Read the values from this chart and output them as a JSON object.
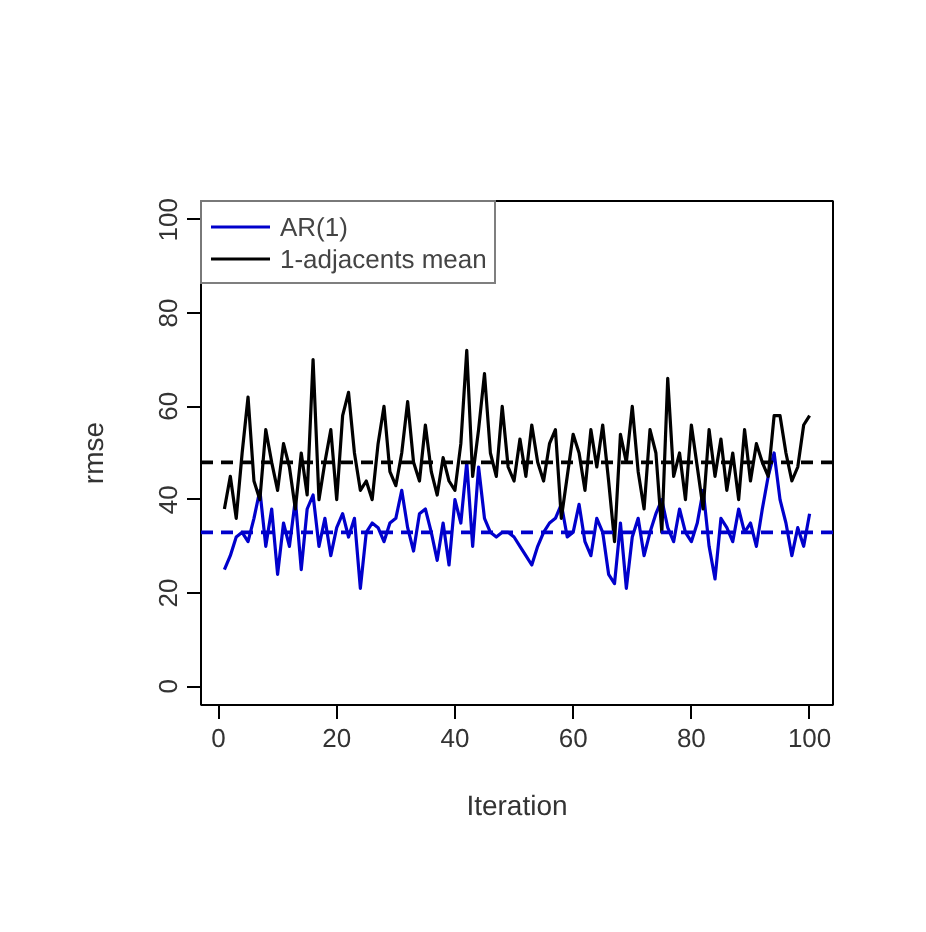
{
  "chart_data": {
    "type": "line",
    "xlabel": "Iteration",
    "ylabel": "rmse",
    "x": [
      1,
      2,
      3,
      4,
      5,
      6,
      7,
      8,
      9,
      10,
      11,
      12,
      13,
      14,
      15,
      16,
      17,
      18,
      19,
      20,
      21,
      22,
      23,
      24,
      25,
      26,
      27,
      28,
      29,
      30,
      31,
      32,
      33,
      34,
      35,
      36,
      37,
      38,
      39,
      40,
      41,
      42,
      43,
      44,
      45,
      46,
      47,
      48,
      49,
      50,
      51,
      52,
      53,
      54,
      55,
      56,
      57,
      58,
      59,
      60,
      61,
      62,
      63,
      64,
      65,
      66,
      67,
      68,
      69,
      70,
      71,
      72,
      73,
      74,
      75,
      76,
      77,
      78,
      79,
      80,
      81,
      82,
      83,
      84,
      85,
      86,
      87,
      88,
      89,
      90,
      91,
      92,
      93,
      94,
      95,
      96,
      97,
      98,
      99,
      100
    ],
    "xlim": [
      -2.96,
      103.96
    ],
    "ylim": [
      -4,
      104
    ],
    "xticks": [
      0,
      20,
      40,
      60,
      80,
      100
    ],
    "yticks": [
      0,
      20,
      40,
      60,
      80,
      100
    ],
    "legend": "top left",
    "series": [
      {
        "name": "AR(1)",
        "color": "#0000cc",
        "values": [
          25,
          28,
          32,
          33,
          31,
          36,
          42,
          30,
          38,
          24,
          35,
          30,
          40,
          25,
          38,
          41,
          30,
          36,
          28,
          34,
          37,
          32,
          36,
          21,
          33,
          35,
          34,
          31,
          35,
          36,
          42,
          34,
          29,
          37,
          38,
          33,
          27,
          35,
          26,
          40,
          35,
          48,
          30,
          47,
          36,
          33,
          32,
          33,
          33,
          32,
          30,
          28,
          26,
          30,
          33,
          35,
          36,
          39,
          32,
          33,
          39,
          31,
          28,
          36,
          33,
          24,
          22,
          35,
          21,
          32,
          36,
          28,
          33,
          37,
          40,
          34,
          31,
          38,
          33,
          31,
          35,
          42,
          30,
          23,
          36,
          34,
          31,
          38,
          33,
          35,
          30,
          38,
          45,
          50,
          40,
          35,
          28,
          34,
          30,
          37
        ]
      },
      {
        "name": "1-adjacents mean",
        "color": "#000000",
        "values": [
          38,
          45,
          36,
          50,
          62,
          44,
          40,
          55,
          48,
          42,
          52,
          47,
          38,
          50,
          41,
          70,
          40,
          48,
          55,
          40,
          58,
          63,
          50,
          42,
          44,
          40,
          52,
          60,
          46,
          43,
          50,
          61,
          48,
          44,
          56,
          46,
          41,
          49,
          44,
          42,
          52,
          72,
          45,
          55,
          67,
          50,
          45,
          60,
          47,
          44,
          53,
          45,
          56,
          48,
          44,
          52,
          55,
          36,
          45,
          54,
          50,
          42,
          55,
          47,
          56,
          44,
          31,
          54,
          48,
          60,
          46,
          38,
          55,
          50,
          33,
          66,
          45,
          50,
          40,
          56,
          47,
          38,
          55,
          45,
          53,
          42,
          50,
          40,
          55,
          44,
          52,
          48,
          45,
          58,
          58,
          50,
          44,
          47,
          56,
          58
        ]
      }
    ],
    "ref_lines": [
      {
        "axis": "y",
        "value": 48,
        "color": "#000000",
        "line_style": "dashed"
      },
      {
        "axis": "y",
        "value": 33,
        "color": "#0000cc",
        "line_style": "dashed"
      }
    ]
  }
}
